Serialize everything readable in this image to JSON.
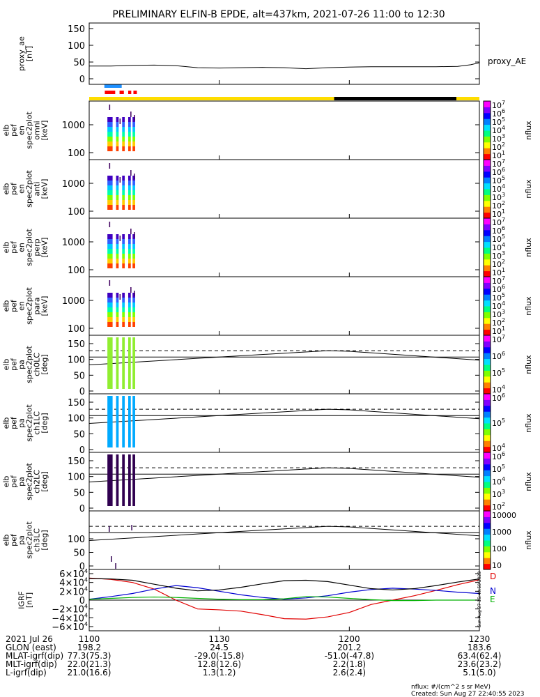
{
  "chart_data": {
    "type": "line",
    "title": "PRELIMINARY ELFIN-B EPDE, alt=437km, 2021-07-26 11:00 to 12:30",
    "x_ticks": [
      "1100",
      "1130",
      "1200",
      "1230"
    ],
    "panels": [
      {
        "id": "proxy_ae",
        "ylabel": [
          "proxy_ae",
          "[nT]"
        ],
        "yticks": [
          "150",
          "100",
          "50",
          "0"
        ],
        "ylim": [
          0,
          160
        ],
        "series_label": "proxy_AE",
        "series": {
          "name": "proxy_AE",
          "x": [
            0,
            5,
            10,
            15,
            20,
            25,
            30,
            35,
            40,
            45,
            50,
            55,
            60,
            65,
            70,
            75,
            80,
            85,
            88,
            90
          ],
          "y": [
            38,
            38,
            40,
            41,
            39,
            33,
            32,
            33,
            34,
            33,
            30,
            33,
            35,
            36,
            36,
            36,
            36,
            37,
            42,
            48
          ]
        }
      },
      {
        "id": "en_omni",
        "ylabel": [
          "elb",
          "pef",
          "en",
          "spec2plot",
          "omni",
          "[keV]"
        ],
        "yticks": [
          "1000",
          "100"
        ],
        "cbar_ticks": [
          "10",
          "10",
          "10",
          "10",
          "10",
          "10",
          "10"
        ],
        "cbar_exps": [
          "7",
          "6",
          "5",
          "4",
          "3",
          "2",
          "1"
        ],
        "cbar_label": "nflux"
      },
      {
        "id": "en_anti",
        "ylabel": [
          "elb",
          "pef",
          "en",
          "spec2plot",
          "anti",
          "[keV]"
        ],
        "yticks": [
          "1000",
          "100"
        ],
        "cbar_ticks": [
          "10",
          "10",
          "10",
          "10",
          "10",
          "10",
          "10"
        ],
        "cbar_exps": [
          "7",
          "6",
          "5",
          "4",
          "3",
          "2",
          "1"
        ],
        "cbar_label": "nflux"
      },
      {
        "id": "en_perp",
        "ylabel": [
          "elb",
          "pef",
          "en",
          "spec2plot",
          "perp",
          "[keV]"
        ],
        "yticks": [
          "1000",
          "100"
        ],
        "cbar_ticks": [
          "10",
          "10",
          "10",
          "10",
          "10",
          "10",
          "10"
        ],
        "cbar_exps": [
          "7",
          "6",
          "5",
          "4",
          "3",
          "2",
          "1"
        ],
        "cbar_label": "nflux"
      },
      {
        "id": "en_para",
        "ylabel": [
          "elb",
          "pef",
          "en",
          "spec2plot",
          "para",
          "[keV]"
        ],
        "yticks": [
          "1000",
          "100"
        ],
        "cbar_ticks": [
          "10",
          "10",
          "10",
          "10",
          "10",
          "10",
          "10"
        ],
        "cbar_exps": [
          "7",
          "6",
          "5",
          "4",
          "3",
          "2",
          "1"
        ],
        "cbar_label": "nflux"
      },
      {
        "id": "pa_ch0",
        "ylabel": [
          "elb",
          "pef",
          "pa",
          "spec2plot",
          "ch0LC",
          "[deg]"
        ],
        "yticks": [
          "150",
          "100",
          "50",
          "0"
        ],
        "cbar_ticks": [
          "10",
          "10",
          "10",
          "10"
        ],
        "cbar_exps": [
          "7",
          "6",
          "5",
          "4"
        ],
        "cbar_label": "nflux"
      },
      {
        "id": "pa_ch1",
        "ylabel": [
          "elb",
          "pef",
          "pa",
          "spec2plot",
          "ch1LC",
          "[deg]"
        ],
        "yticks": [
          "150",
          "100",
          "50",
          "0"
        ],
        "cbar_ticks": [
          "10",
          "10",
          "10"
        ],
        "cbar_exps": [
          "6",
          "5",
          "4"
        ],
        "cbar_label": "nflux"
      },
      {
        "id": "pa_ch2",
        "ylabel": [
          "elb",
          "pef",
          "pa",
          "spec2plot",
          "ch2LC",
          "[deg]"
        ],
        "yticks": [
          "150",
          "100",
          "50",
          "0"
        ],
        "cbar_ticks": [
          "10",
          "10",
          "10",
          "10",
          "10"
        ],
        "cbar_exps": [
          "6",
          "5",
          "4",
          "3",
          "2"
        ],
        "cbar_label": "nflux"
      },
      {
        "id": "pa_ch3",
        "ylabel": [
          "elb",
          "pef",
          "pa",
          "spec2plot",
          "ch3LC",
          "[deg]"
        ],
        "yticks": [
          "100",
          "50",
          "0"
        ],
        "cbar_ticks": [
          "10000",
          "1000",
          "100",
          "10"
        ],
        "cbar_label": "nflux"
      },
      {
        "id": "igrf",
        "ylabel": [
          "IGRF",
          "[nT]"
        ],
        "yticks": [
          "6×10",
          "4×10",
          "2×10",
          "0",
          "−2×10",
          "−4×10",
          "−6×10"
        ],
        "ytick_exps": [
          "4",
          "4",
          "4",
          "",
          "4",
          "4",
          "4"
        ],
        "components": [
          {
            "name": "D",
            "color": "#e00000",
            "x": [
              0,
              5,
              10,
              15,
              20,
              25,
              30,
              35,
              40,
              45,
              50,
              55,
              60,
              65,
              70,
              75,
              80,
              85,
              90
            ],
            "y": [
              50000,
              47000,
              40000,
              25000,
              0,
              -20000,
              -22000,
              -25000,
              -33000,
              -42000,
              -43000,
              -38000,
              -28000,
              -10000,
              0,
              10000,
              22000,
              35000,
              46000
            ]
          },
          {
            "name": "N",
            "color": "#0000d0",
            "x": [
              0,
              5,
              10,
              15,
              20,
              25,
              30,
              35,
              40,
              45,
              50,
              55,
              60,
              65,
              70,
              75,
              80,
              85,
              90
            ],
            "y": [
              2000,
              8000,
              15000,
              25000,
              33000,
              28000,
              20000,
              12000,
              6000,
              2000,
              5000,
              10000,
              18000,
              24000,
              27000,
              25000,
              22000,
              18000,
              15000
            ]
          },
          {
            "name": "E",
            "color": "#00b000",
            "x": [
              0,
              5,
              10,
              15,
              20,
              25,
              30,
              35,
              40,
              45,
              50,
              55,
              60,
              65,
              70,
              75,
              80,
              85,
              90
            ],
            "y": [
              2000,
              4000,
              6000,
              7000,
              6000,
              4000,
              2000,
              1000,
              1000,
              3000,
              8000,
              7000,
              4000,
              1000,
              -1000,
              -1000,
              0,
              0,
              0
            ]
          },
          {
            "name": "F",
            "color": "#000000",
            "x": [
              0,
              5,
              10,
              15,
              20,
              25,
              30,
              35,
              40,
              45,
              50,
              55,
              60,
              65,
              70,
              75,
              80,
              85,
              90
            ],
            "y": [
              49000,
              48000,
              45000,
              36000,
              27000,
              21000,
              23000,
              29000,
              37000,
              44000,
              45000,
              42000,
              34000,
              26000,
              23000,
              26000,
              33000,
              41000,
              48000
            ]
          }
        ]
      }
    ],
    "pa_lines": {
      "dashed": 110,
      "solid_flat": 90,
      "loss_cone_x": [
        0,
        30,
        55,
        60,
        90
      ],
      "loss_cone_y": [
        65,
        90,
        110,
        108,
        80
      ]
    },
    "colorbar_colors": [
      "#ff0000",
      "#ff8000",
      "#ffff00",
      "#80ff00",
      "#00ff80",
      "#00e0ff",
      "#0080ff",
      "#0000ff",
      "#8000ff",
      "#ff00ff"
    ]
  },
  "ephemeris": {
    "rows": [
      {
        "label": "2021 Jul 26",
        "values": [
          "1100",
          "1130",
          "1200",
          "1230"
        ]
      },
      {
        "label": "GLON (east)",
        "values": [
          "198.2",
          "24.5",
          "201.2",
          "183.6"
        ]
      },
      {
        "label": "MLAT-igrf(dip)",
        "values": [
          "77.3(75.3)",
          "-29.0(-15.8)",
          "-51.0(-47.8)",
          "63.4(62.4)"
        ]
      },
      {
        "label": "MLT-igrf(dip)",
        "values": [
          "22.0(21.3)",
          "12.8(12.6)",
          "2.2(1.8)",
          "23.6(23.2)"
        ]
      },
      {
        "label": "L-igrf(dip)",
        "values": [
          "21.0(16.6)",
          "1.3(1.2)",
          "2.6(2.4)",
          "5.1(5.0)"
        ]
      }
    ]
  },
  "footer": {
    "units": "nflux: #/(cm^2 s sr MeV)",
    "created": "Created: Sun Aug 27 22:40:55 2023",
    "side_stamp": "Sun Aug 27 15:40:58 2023"
  },
  "status_bars": {
    "bar_colors": [
      "#ffdd00",
      "#000000",
      "#ffdd00"
    ],
    "bar_segments_x": [
      0,
      56.5,
      84.7,
      90
    ]
  }
}
